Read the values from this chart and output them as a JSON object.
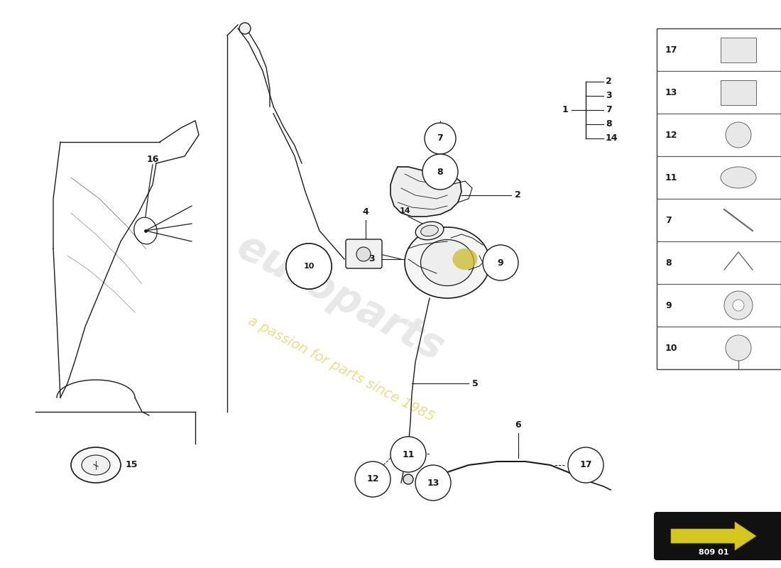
{
  "part_number": "809 01",
  "background_color": "#ffffff",
  "line_color": "#1a1a1a",
  "bracket_nums": [
    "2",
    "3",
    "7",
    "8",
    "14"
  ],
  "bracket_label": "1",
  "sidebar_items": [
    {
      "num": "17"
    },
    {
      "num": "13"
    },
    {
      "num": "12"
    },
    {
      "num": "11"
    },
    {
      "num": "7"
    },
    {
      "num": "8"
    },
    {
      "num": "9"
    },
    {
      "num": "10"
    }
  ],
  "watermark1": "europarts",
  "watermark2": "a passion for parts since 1985",
  "wm1_color": "#cccccc",
  "wm2_color": "#d4c840"
}
